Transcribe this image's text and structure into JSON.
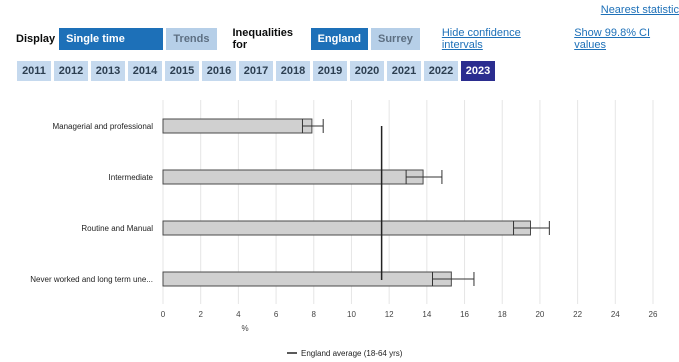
{
  "top_link": "Nearest statistic",
  "display": {
    "label": "Display",
    "options": [
      {
        "label": "Single time period",
        "active": true
      },
      {
        "label": "Trends",
        "active": false
      }
    ]
  },
  "inequalities": {
    "label": "Inequalities for",
    "options": [
      {
        "label": "England",
        "active": true
      },
      {
        "label": "Surrey",
        "active": false
      }
    ]
  },
  "links": {
    "hide_ci": "Hide confidence intervals",
    "show_ci": "Show 99.8% CI values"
  },
  "years": [
    "2011",
    "2012",
    "2013",
    "2014",
    "2015",
    "2016",
    "2017",
    "2018",
    "2019",
    "2020",
    "2021",
    "2022",
    "2023"
  ],
  "selected_year": "2023",
  "chart_data": {
    "type": "bar",
    "orientation": "horizontal",
    "categories": [
      "Managerial and professional",
      "Intermediate",
      "Routine and Manual",
      "Never worked and long term une..."
    ],
    "values": [
      7.9,
      13.8,
      19.5,
      15.3
    ],
    "ci_lower": [
      7.4,
      12.9,
      18.6,
      14.3
    ],
    "ci_upper": [
      8.5,
      14.8,
      20.5,
      16.5
    ],
    "xlabel": "%",
    "xlim": [
      0,
      26
    ],
    "xticks": [
      0,
      2,
      4,
      6,
      8,
      10,
      12,
      14,
      16,
      18,
      20,
      22,
      24,
      26
    ],
    "reference_line": {
      "label": "England average (18-64 yrs)",
      "value": 11.6
    },
    "grid": true,
    "legend_position": "bottom"
  },
  "colors": {
    "bar": "#d0d0d0",
    "bar_stroke": "#4a4a4a",
    "grid": "#e6e6e6",
    "accent": "#1d70b8",
    "selected_year": "#2b2d8f"
  }
}
